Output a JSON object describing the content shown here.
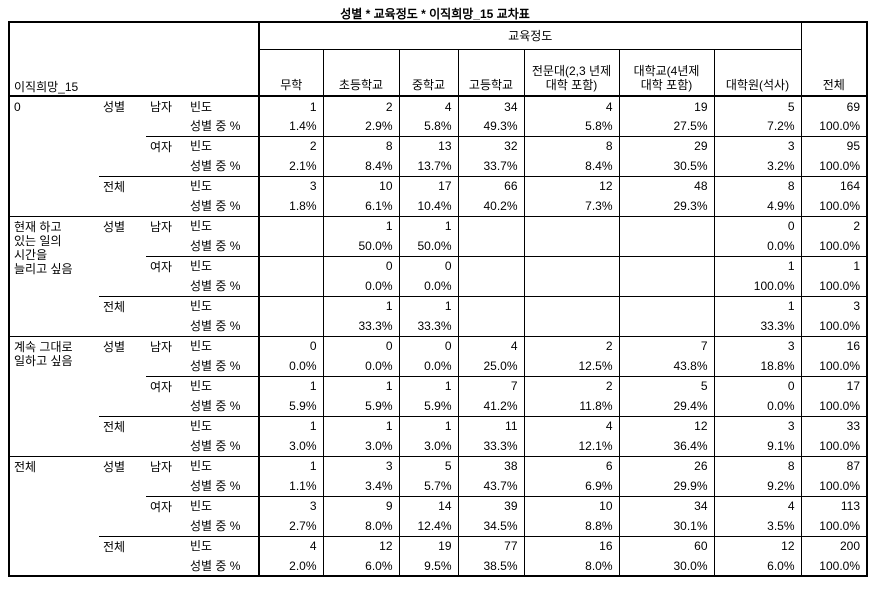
{
  "title": "성별 * 교육정도 * 이직희망_15 교차표",
  "table": {
    "corner_label": "이직희망_15",
    "span_header": "교육정도",
    "total_col_header": "전체",
    "col_headers": [
      "무학",
      "초등학교",
      "중학교",
      "고등학교",
      "전문대(2,3 년제 대학 포함)",
      "대학교(4년제 대학 포함)",
      "대학원(석사)"
    ],
    "row_labels": {
      "gender_group": "성별",
      "male": "남자",
      "female": "여자",
      "total": "전체",
      "count": "빈도",
      "pct": "성별 중 %"
    },
    "blocks": [
      {
        "label": "0",
        "male_count": [
          "1",
          "2",
          "4",
          "34",
          "4",
          "19",
          "5",
          "69"
        ],
        "male_pct": [
          "1.4%",
          "2.9%",
          "5.8%",
          "49.3%",
          "5.8%",
          "27.5%",
          "7.2%",
          "100.0%"
        ],
        "female_count": [
          "2",
          "8",
          "13",
          "32",
          "8",
          "29",
          "3",
          "95"
        ],
        "female_pct": [
          "2.1%",
          "8.4%",
          "13.7%",
          "33.7%",
          "8.4%",
          "30.5%",
          "3.2%",
          "100.0%"
        ],
        "total_count": [
          "3",
          "10",
          "17",
          "66",
          "12",
          "48",
          "8",
          "164"
        ],
        "total_pct": [
          "1.8%",
          "6.1%",
          "10.4%",
          "40.2%",
          "7.3%",
          "29.3%",
          "4.9%",
          "100.0%"
        ]
      },
      {
        "label": "현재 하고 있는 일의 시간을 늘리고 싶음",
        "male_count": [
          "",
          "1",
          "1",
          "",
          "",
          "",
          "0",
          "2"
        ],
        "male_pct": [
          "",
          "50.0%",
          "50.0%",
          "",
          "",
          "",
          "0.0%",
          "100.0%"
        ],
        "female_count": [
          "",
          "0",
          "0",
          "",
          "",
          "",
          "1",
          "1"
        ],
        "female_pct": [
          "",
          "0.0%",
          "0.0%",
          "",
          "",
          "",
          "100.0%",
          "100.0%"
        ],
        "total_count": [
          "",
          "1",
          "1",
          "",
          "",
          "",
          "1",
          "3"
        ],
        "total_pct": [
          "",
          "33.3%",
          "33.3%",
          "",
          "",
          "",
          "33.3%",
          "100.0%"
        ]
      },
      {
        "label": "계속 그대로 일하고 싶음",
        "male_count": [
          "0",
          "0",
          "0",
          "4",
          "2",
          "7",
          "3",
          "16"
        ],
        "male_pct": [
          "0.0%",
          "0.0%",
          "0.0%",
          "25.0%",
          "12.5%",
          "43.8%",
          "18.8%",
          "100.0%"
        ],
        "female_count": [
          "1",
          "1",
          "1",
          "7",
          "2",
          "5",
          "0",
          "17"
        ],
        "female_pct": [
          "5.9%",
          "5.9%",
          "5.9%",
          "41.2%",
          "11.8%",
          "29.4%",
          "0.0%",
          "100.0%"
        ],
        "total_count": [
          "1",
          "1",
          "1",
          "11",
          "4",
          "12",
          "3",
          "33"
        ],
        "total_pct": [
          "3.0%",
          "3.0%",
          "3.0%",
          "33.3%",
          "12.1%",
          "36.4%",
          "9.1%",
          "100.0%"
        ]
      },
      {
        "label": "전체",
        "male_count": [
          "1",
          "3",
          "5",
          "38",
          "6",
          "26",
          "8",
          "87"
        ],
        "male_pct": [
          "1.1%",
          "3.4%",
          "5.7%",
          "43.7%",
          "6.9%",
          "29.9%",
          "9.2%",
          "100.0%"
        ],
        "female_count": [
          "3",
          "9",
          "14",
          "39",
          "10",
          "34",
          "4",
          "113"
        ],
        "female_pct": [
          "2.7%",
          "8.0%",
          "12.4%",
          "34.5%",
          "8.8%",
          "30.1%",
          "3.5%",
          "100.0%"
        ],
        "total_count": [
          "4",
          "12",
          "19",
          "77",
          "16",
          "60",
          "12",
          "200"
        ],
        "total_pct": [
          "2.0%",
          "6.0%",
          "9.5%",
          "38.5%",
          "8.0%",
          "30.0%",
          "6.0%",
          "100.0%"
        ]
      }
    ]
  }
}
